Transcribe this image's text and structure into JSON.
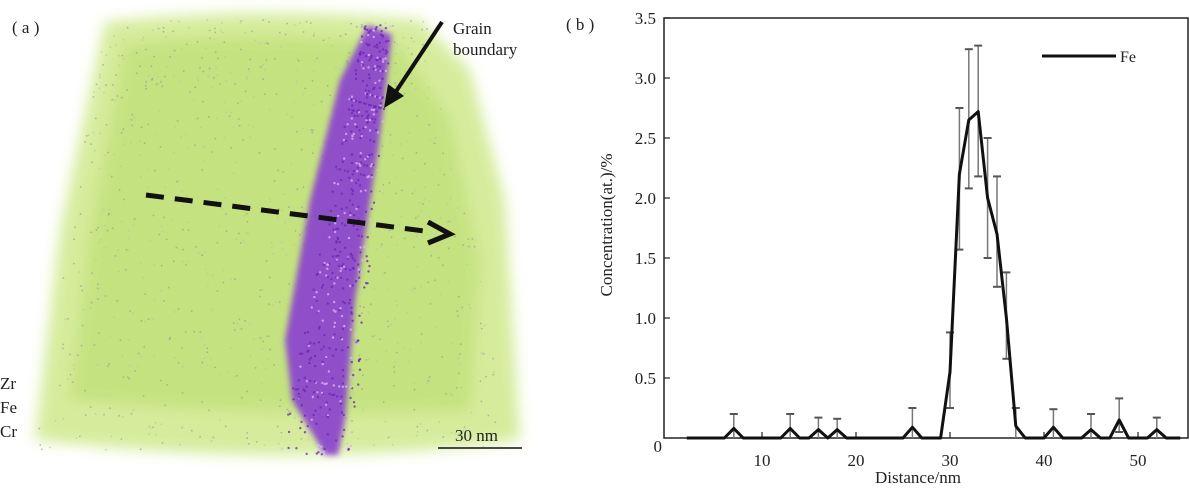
{
  "panel_a": {
    "label": "( a )",
    "annotation": [
      "Grain",
      "boundary"
    ],
    "elements": [
      "Zr",
      "Fe",
      "Cr"
    ],
    "scale_bar": "30 nm",
    "colors": {
      "matrix_Zr": "#c8e68a",
      "boundary_Fe": "#8a3fd0",
      "arrow": "#111111"
    }
  },
  "chart_data": {
    "panel_label": "( b )",
    "type": "line",
    "xlabel": "Distance/nm",
    "ylabel": "Concentration(at.)/%",
    "xlim": [
      0,
      55.4
    ],
    "ylim": [
      0,
      3.5
    ],
    "xticks": [
      10,
      20,
      30,
      40,
      50
    ],
    "yticks": [
      "0",
      "0.5",
      "1.0",
      "1.5",
      "2.0",
      "2.5",
      "3.0",
      "3.5"
    ],
    "legend": {
      "position": "top-right"
    },
    "grid": false,
    "series": [
      {
        "name": "Fe",
        "color": "#111111",
        "x": [
          2,
          6,
          7,
          8,
          12,
          13,
          14,
          15,
          16,
          17,
          18,
          19,
          25,
          26,
          27,
          29,
          30,
          31,
          32,
          33,
          34,
          35,
          36,
          37,
          38,
          40,
          41,
          42,
          44,
          45,
          46,
          47,
          48,
          49,
          51,
          52,
          53,
          54.5
        ],
        "y": [
          0,
          0,
          0.08,
          0,
          0,
          0.08,
          0,
          0,
          0.07,
          0,
          0.07,
          0,
          0,
          0.09,
          0,
          0,
          0.55,
          2.2,
          2.65,
          2.72,
          2.0,
          1.7,
          1.0,
          0.1,
          0,
          0,
          0.09,
          0,
          0,
          0.07,
          0,
          0,
          0.15,
          0,
          0,
          0.07,
          0,
          0
        ]
      }
    ],
    "error_bars": [
      {
        "x": 7,
        "low": 0,
        "high": 0.2
      },
      {
        "x": 13,
        "low": 0,
        "high": 0.2
      },
      {
        "x": 16,
        "low": 0,
        "high": 0.17
      },
      {
        "x": 18,
        "low": 0,
        "high": 0.16
      },
      {
        "x": 26,
        "low": 0,
        "high": 0.25
      },
      {
        "x": 30,
        "low": 0.25,
        "high": 0.88
      },
      {
        "x": 31,
        "low": 1.57,
        "high": 2.75
      },
      {
        "x": 32,
        "low": 2.08,
        "high": 3.24
      },
      {
        "x": 33,
        "low": 2.18,
        "high": 3.27
      },
      {
        "x": 34,
        "low": 1.5,
        "high": 2.5
      },
      {
        "x": 35,
        "low": 1.26,
        "high": 2.18
      },
      {
        "x": 36,
        "low": 0.66,
        "high": 1.38
      },
      {
        "x": 37,
        "low": 0,
        "high": 0.25
      },
      {
        "x": 41,
        "low": 0,
        "high": 0.24
      },
      {
        "x": 45,
        "low": 0,
        "high": 0.2
      },
      {
        "x": 48,
        "low": 0.05,
        "high": 0.33
      },
      {
        "x": 52,
        "low": 0,
        "high": 0.17
      }
    ]
  }
}
